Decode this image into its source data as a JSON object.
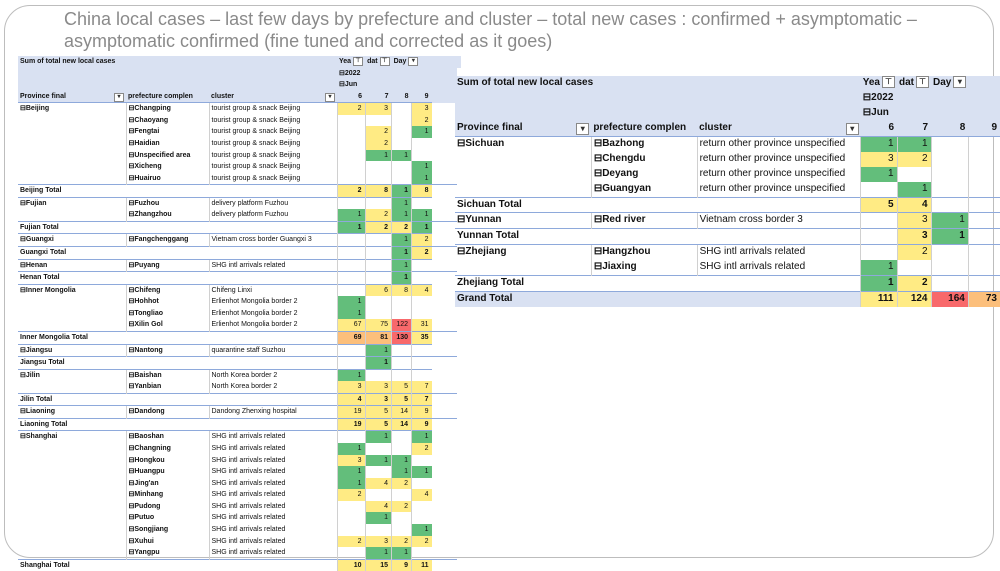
{
  "title": "China local cases – last few days by prefecture and cluster – total new cases : confirmed + asymptomatic – asymptomatic confirmed (fine tuned and corrected as it goes)",
  "colors": {
    "green": "#63be7b",
    "yellow": "#ffeb84",
    "orange": "#fcbf7b",
    "red": "#f8696b",
    "header": "#d9e1f2"
  },
  "icons": {
    "expand": "⊟",
    "filter": "▾"
  },
  "left": {
    "sum_label": "Sum of total new local cases",
    "col_year": "Yea",
    "col_date": "dat",
    "col_day": "Day",
    "year": "2022",
    "month": "Jun",
    "col_province": "Province final",
    "col_prefecture": "prefecture complen",
    "col_cluster": "cluster",
    "days": [
      "6",
      "7",
      "8",
      "9"
    ],
    "rows": [
      {
        "t": "d",
        "p": "Beijing",
        "f": "Changping",
        "c": "tourist group & snack Beijing",
        "v": [
          [
            "2",
            "y"
          ],
          [
            "3",
            "y"
          ],
          [
            "",
            ""
          ],
          [
            "3",
            "y"
          ]
        ]
      },
      {
        "t": "d",
        "p": "",
        "f": "Chaoyang",
        "c": "tourist group & snack Beijing",
        "v": [
          [
            "",
            ""
          ],
          [
            "",
            ""
          ],
          [
            "",
            ""
          ],
          [
            "2",
            "y"
          ]
        ]
      },
      {
        "t": "d",
        "p": "",
        "f": "Fengtai",
        "c": "tourist group & snack Beijing",
        "v": [
          [
            "",
            ""
          ],
          [
            "2",
            "y"
          ],
          [
            "",
            ""
          ],
          [
            "1",
            "g"
          ]
        ]
      },
      {
        "t": "d",
        "p": "",
        "f": "Haidian",
        "c": "tourist group & snack Beijing",
        "v": [
          [
            "",
            ""
          ],
          [
            "2",
            "y"
          ],
          [
            "",
            ""
          ],
          [
            "",
            ""
          ]
        ]
      },
      {
        "t": "d",
        "p": "",
        "f": "Unspecified area",
        "c": "tourist group & snack Beijing",
        "v": [
          [
            "",
            ""
          ],
          [
            "1",
            "g"
          ],
          [
            "1",
            "g"
          ],
          [
            "",
            ""
          ]
        ]
      },
      {
        "t": "d",
        "p": "",
        "f": "Xicheng",
        "c": "tourist group & snack Beijing",
        "v": [
          [
            "",
            ""
          ],
          [
            "",
            ""
          ],
          [
            "",
            ""
          ],
          [
            "1",
            "g"
          ]
        ]
      },
      {
        "t": "d",
        "p": "",
        "f": "Huairuo",
        "c": "tourist group & snack Beijing",
        "v": [
          [
            "",
            ""
          ],
          [
            "",
            ""
          ],
          [
            "",
            ""
          ],
          [
            "1",
            "g"
          ]
        ]
      },
      {
        "t": "t",
        "p": "Beijing Total",
        "v": [
          [
            "2",
            "y"
          ],
          [
            "8",
            "y"
          ],
          [
            "1",
            "g"
          ],
          [
            "8",
            "y"
          ]
        ]
      },
      {
        "t": "d",
        "p": "Fujian",
        "f": "Fuzhou",
        "c": "delivery platform Fuzhou",
        "v": [
          [
            "",
            ""
          ],
          [
            "",
            ""
          ],
          [
            "1",
            "g"
          ],
          [
            "",
            ""
          ]
        ]
      },
      {
        "t": "d",
        "p": "",
        "f": "Zhangzhou",
        "c": "delivery platform Fuzhou",
        "v": [
          [
            "1",
            "g"
          ],
          [
            "2",
            "y"
          ],
          [
            "1",
            "g"
          ],
          [
            "1",
            "g"
          ]
        ]
      },
      {
        "t": "t",
        "p": "Fujian Total",
        "v": [
          [
            "1",
            "g"
          ],
          [
            "2",
            "y"
          ],
          [
            "2",
            "y"
          ],
          [
            "1",
            "g"
          ]
        ]
      },
      {
        "t": "d",
        "p": "Guangxi",
        "f": "Fangchenggang",
        "c": "Vietnam cross border Guangxi 3",
        "v": [
          [
            "",
            ""
          ],
          [
            "",
            ""
          ],
          [
            "1",
            "g"
          ],
          [
            "2",
            "y"
          ]
        ]
      },
      {
        "t": "t",
        "p": "Guangxi Total",
        "v": [
          [
            "",
            ""
          ],
          [
            "",
            ""
          ],
          [
            "1",
            "g"
          ],
          [
            "2",
            "y"
          ]
        ]
      },
      {
        "t": "d",
        "p": "Henan",
        "f": "Puyang",
        "c": "SHG intl arrivals related",
        "v": [
          [
            "",
            ""
          ],
          [
            "",
            ""
          ],
          [
            "1",
            "g"
          ],
          [
            "",
            ""
          ]
        ]
      },
      {
        "t": "t",
        "p": "Henan Total",
        "v": [
          [
            "",
            ""
          ],
          [
            "",
            ""
          ],
          [
            "1",
            "g"
          ],
          [
            "",
            ""
          ]
        ]
      },
      {
        "t": "d",
        "p": "Inner Mongolia",
        "f": "Chifeng",
        "c": "Chifeng Linxi",
        "v": [
          [
            "",
            ""
          ],
          [
            "6",
            "y"
          ],
          [
            "8",
            "y"
          ],
          [
            "4",
            "y"
          ]
        ]
      },
      {
        "t": "d",
        "p": "",
        "f": "Hohhot",
        "c": "Erlienhot Mongolia border 2",
        "v": [
          [
            "1",
            "g"
          ],
          [
            "",
            ""
          ],
          [
            "",
            ""
          ],
          [
            "",
            ""
          ]
        ]
      },
      {
        "t": "d",
        "p": "",
        "f": "Tongliao",
        "c": "Erlienhot Mongolia border 2",
        "v": [
          [
            "1",
            "g"
          ],
          [
            "",
            ""
          ],
          [
            "",
            ""
          ],
          [
            "",
            ""
          ]
        ]
      },
      {
        "t": "d",
        "p": "",
        "f": "Xilin Gol",
        "c": "Erlienhot Mongolia border 2",
        "v": [
          [
            "67",
            "y"
          ],
          [
            "75",
            "y"
          ],
          [
            "122",
            "r"
          ],
          [
            "31",
            "y"
          ]
        ]
      },
      {
        "t": "t",
        "p": "Inner Mongolia Total",
        "v": [
          [
            "69",
            "o"
          ],
          [
            "81",
            "o"
          ],
          [
            "130",
            "r"
          ],
          [
            "35",
            "y"
          ]
        ]
      },
      {
        "t": "d",
        "p": "Jiangsu",
        "f": "Nantong",
        "c": "quarantine staff Suzhou",
        "v": [
          [
            "",
            ""
          ],
          [
            "1",
            "g"
          ],
          [
            "",
            ""
          ],
          [
            "",
            ""
          ]
        ]
      },
      {
        "t": "t",
        "p": "Jiangsu Total",
        "v": [
          [
            "",
            ""
          ],
          [
            "1",
            "g"
          ],
          [
            "",
            ""
          ],
          [
            "",
            ""
          ]
        ]
      },
      {
        "t": "d",
        "p": "Jilin",
        "f": "Baishan",
        "c": "North Korea border 2",
        "v": [
          [
            "1",
            "g"
          ],
          [
            "",
            ""
          ],
          [
            "",
            ""
          ],
          [
            "",
            ""
          ]
        ]
      },
      {
        "t": "d",
        "p": "",
        "f": "Yanbian",
        "c": "North Korea border 2",
        "v": [
          [
            "3",
            "y"
          ],
          [
            "3",
            "y"
          ],
          [
            "5",
            "y"
          ],
          [
            "7",
            "y"
          ]
        ]
      },
      {
        "t": "t",
        "p": "Jilin Total",
        "v": [
          [
            "4",
            "y"
          ],
          [
            "3",
            "y"
          ],
          [
            "5",
            "y"
          ],
          [
            "7",
            "y"
          ]
        ]
      },
      {
        "t": "d",
        "p": "Liaoning",
        "f": "Dandong",
        "c": "Dandong Zhenxing hospital",
        "v": [
          [
            "19",
            "y"
          ],
          [
            "5",
            "y"
          ],
          [
            "14",
            "y"
          ],
          [
            "9",
            "y"
          ]
        ]
      },
      {
        "t": "t",
        "p": "Liaoning Total",
        "v": [
          [
            "19",
            "y"
          ],
          [
            "5",
            "y"
          ],
          [
            "14",
            "y"
          ],
          [
            "9",
            "y"
          ]
        ]
      },
      {
        "t": "d",
        "p": "Shanghai",
        "f": "Baoshan",
        "c": "SHG intl arrivals related",
        "v": [
          [
            "",
            ""
          ],
          [
            "1",
            "g"
          ],
          [
            "",
            ""
          ],
          [
            "1",
            "g"
          ]
        ]
      },
      {
        "t": "d",
        "p": "",
        "f": "Changning",
        "c": "SHG intl arrivals related",
        "v": [
          [
            "1",
            "g"
          ],
          [
            "",
            ""
          ],
          [
            "",
            ""
          ],
          [
            "2",
            "y"
          ]
        ]
      },
      {
        "t": "d",
        "p": "",
        "f": "Hongkou",
        "c": "SHG intl arrivals related",
        "v": [
          [
            "3",
            "y"
          ],
          [
            "1",
            "g"
          ],
          [
            "1",
            "g"
          ],
          [
            "",
            ""
          ]
        ]
      },
      {
        "t": "d",
        "p": "",
        "f": "Huangpu",
        "c": "SHG intl arrivals related",
        "v": [
          [
            "1",
            "g"
          ],
          [
            "",
            ""
          ],
          [
            "1",
            "g"
          ],
          [
            "1",
            "g"
          ]
        ]
      },
      {
        "t": "d",
        "p": "",
        "f": "Jing'an",
        "c": "SHG intl arrivals related",
        "v": [
          [
            "1",
            "g"
          ],
          [
            "4",
            "y"
          ],
          [
            "2",
            "y"
          ],
          [
            "",
            ""
          ]
        ]
      },
      {
        "t": "d",
        "p": "",
        "f": "Minhang",
        "c": "SHG intl arrivals related",
        "v": [
          [
            "2",
            "y"
          ],
          [
            "",
            ""
          ],
          [
            "",
            ""
          ],
          [
            "4",
            "y"
          ]
        ]
      },
      {
        "t": "d",
        "p": "",
        "f": "Pudong",
        "c": "SHG intl arrivals related",
        "v": [
          [
            "",
            ""
          ],
          [
            "4",
            "y"
          ],
          [
            "2",
            "y"
          ],
          [
            "",
            ""
          ]
        ]
      },
      {
        "t": "d",
        "p": "",
        "f": "Putuo",
        "c": "SHG intl arrivals related",
        "v": [
          [
            "",
            ""
          ],
          [
            "1",
            "g"
          ],
          [
            "",
            ""
          ],
          [
            "",
            ""
          ]
        ]
      },
      {
        "t": "d",
        "p": "",
        "f": "Songjiang",
        "c": "SHG intl arrivals related",
        "v": [
          [
            "",
            ""
          ],
          [
            "",
            ""
          ],
          [
            "",
            ""
          ],
          [
            "1",
            "g"
          ]
        ]
      },
      {
        "t": "d",
        "p": "",
        "f": "Xuhui",
        "c": "SHG intl arrivals related",
        "v": [
          [
            "2",
            "y"
          ],
          [
            "3",
            "y"
          ],
          [
            "2",
            "y"
          ],
          [
            "2",
            "y"
          ]
        ]
      },
      {
        "t": "d",
        "p": "",
        "f": "Yangpu",
        "c": "SHG intl arrivals related",
        "v": [
          [
            "",
            ""
          ],
          [
            "1",
            "g"
          ],
          [
            "1",
            "g"
          ],
          [
            "",
            ""
          ]
        ]
      },
      {
        "t": "t",
        "p": "Shanghai Total",
        "v": [
          [
            "10",
            "y"
          ],
          [
            "15",
            "y"
          ],
          [
            "9",
            "y"
          ],
          [
            "11",
            "y"
          ]
        ]
      }
    ]
  },
  "right": {
    "sum_label": "Sum of total new local cases",
    "col_year": "Yea",
    "col_date": "dat",
    "col_day": "Day",
    "year": "2022",
    "month": "Jun",
    "col_province": "Province final",
    "col_prefecture": "prefecture complen",
    "col_cluster": "cluster",
    "days": [
      "6",
      "7",
      "8",
      "9"
    ],
    "rows": [
      {
        "t": "d",
        "p": "Sichuan",
        "f": "Bazhong",
        "c": "return other province unspecified",
        "v": [
          [
            "1",
            "g"
          ],
          [
            "1",
            "g"
          ],
          [
            "",
            ""
          ],
          [
            "",
            ""
          ]
        ]
      },
      {
        "t": "d",
        "p": "",
        "f": "Chengdu",
        "c": "return other province unspecified",
        "v": [
          [
            "3",
            "y"
          ],
          [
            "2",
            "y"
          ],
          [
            "",
            ""
          ],
          [
            "",
            ""
          ]
        ]
      },
      {
        "t": "d",
        "p": "",
        "f": "Deyang",
        "c": "return other province unspecified",
        "v": [
          [
            "1",
            "g"
          ],
          [
            "",
            ""
          ],
          [
            "",
            ""
          ],
          [
            "",
            ""
          ]
        ]
      },
      {
        "t": "d",
        "p": "",
        "f": "Guangyan",
        "c": "return other province unspecified",
        "v": [
          [
            "",
            ""
          ],
          [
            "1",
            "g"
          ],
          [
            "",
            ""
          ],
          [
            "",
            ""
          ]
        ]
      },
      {
        "t": "t",
        "p": "Sichuan Total",
        "v": [
          [
            "5",
            "y"
          ],
          [
            "4",
            "y"
          ],
          [
            "",
            ""
          ],
          [
            "",
            ""
          ]
        ]
      },
      {
        "t": "d",
        "p": "Yunnan",
        "f": "Red river",
        "c": "Vietnam cross border 3",
        "v": [
          [
            "",
            ""
          ],
          [
            "3",
            "y"
          ],
          [
            "1",
            "g"
          ],
          [
            "",
            ""
          ]
        ]
      },
      {
        "t": "t",
        "p": "Yunnan Total",
        "v": [
          [
            "",
            ""
          ],
          [
            "3",
            "y"
          ],
          [
            "1",
            "g"
          ],
          [
            "",
            ""
          ]
        ]
      },
      {
        "t": "d",
        "p": "Zhejiang",
        "f": "Hangzhou",
        "c": "SHG intl arrivals related",
        "v": [
          [
            "",
            ""
          ],
          [
            "2",
            "y"
          ],
          [
            "",
            ""
          ],
          [
            "",
            ""
          ]
        ]
      },
      {
        "t": "d",
        "p": "",
        "f": "Jiaxing",
        "c": "SHG intl arrivals related",
        "v": [
          [
            "1",
            "g"
          ],
          [
            "",
            ""
          ],
          [
            "",
            ""
          ],
          [
            "",
            ""
          ]
        ]
      },
      {
        "t": "t",
        "p": "Zhejiang Total",
        "v": [
          [
            "1",
            "g"
          ],
          [
            "2",
            "y"
          ],
          [
            "",
            ""
          ],
          [
            "",
            ""
          ]
        ]
      },
      {
        "t": "g",
        "p": "Grand Total",
        "v": [
          [
            "111",
            "y"
          ],
          [
            "124",
            "y"
          ],
          [
            "164",
            "r"
          ],
          [
            "73",
            "o"
          ]
        ]
      }
    ]
  }
}
